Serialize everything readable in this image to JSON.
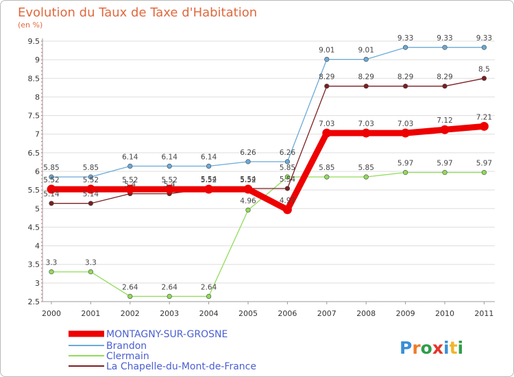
{
  "chart_data": {
    "type": "line",
    "title": "Evolution du Taux de Taxe d'Habitation",
    "subtitle": "(en %)",
    "xlabel": "",
    "ylabel": "",
    "x": [
      "2000",
      "2001",
      "2002",
      "2003",
      "2004",
      "2005",
      "2006",
      "2007",
      "2008",
      "2009",
      "2010",
      "2011"
    ],
    "ylim": [
      2.5,
      9.5
    ],
    "yticks": [
      "2.5",
      "3",
      "3.5",
      "4",
      "4.5",
      "5",
      "5.5",
      "6",
      "6.5",
      "7",
      "7.5",
      "8",
      "8.5",
      "9",
      "9.5"
    ],
    "grid": "horizontal",
    "legend_position": "bottom-left",
    "series": [
      {
        "name": "MONTAGNY-SUR-GROSNE",
        "color": "#ee0000",
        "values": [
          5.52,
          5.52,
          5.52,
          5.52,
          5.52,
          5.52,
          4.97,
          7.03,
          7.03,
          7.03,
          7.12,
          7.21
        ],
        "labels": [
          "5.52",
          "5.52",
          "5.52",
          "5.52",
          "5.52",
          "5.52",
          "4.97",
          "7.03",
          "7.03",
          "7.03",
          "7.12",
          "7.21"
        ]
      },
      {
        "name": "Brandon",
        "color": "#6aaad8",
        "values": [
          5.85,
          5.85,
          6.14,
          6.14,
          6.14,
          6.26,
          6.26,
          9.01,
          9.01,
          9.33,
          9.33,
          9.33
        ],
        "labels": [
          "5.85",
          "5.85",
          "6.14",
          "6.14",
          "6.14",
          "6.26",
          "6.26",
          "9.01",
          "9.01",
          "9.33",
          "9.33",
          "9.33"
        ]
      },
      {
        "name": "Clermain",
        "color": "#90dc5a",
        "values": [
          3.3,
          3.3,
          2.64,
          2.64,
          2.64,
          4.96,
          5.85,
          5.85,
          5.85,
          5.97,
          5.97,
          5.97
        ],
        "labels": [
          "3.3",
          "3.3",
          "2.64",
          "2.64",
          "2.64",
          "4.96",
          "5.85",
          "5.85",
          "5.85",
          "5.97",
          "5.97",
          "5.97"
        ]
      },
      {
        "name": "La Chapelle-du-Mont-de-France",
        "color": "#7a1e22",
        "values": [
          5.14,
          5.14,
          5.4,
          5.4,
          5.54,
          5.54,
          5.54,
          8.29,
          8.29,
          8.29,
          8.29,
          8.5
        ],
        "labels": [
          "5.14",
          "5.14",
          "5.4",
          "5.4",
          "5.54",
          "5.54",
          "5.54",
          "8.29",
          "8.29",
          "8.29",
          "8.29",
          "8.5"
        ]
      }
    ]
  },
  "logo": {
    "text": "Proxiti"
  }
}
